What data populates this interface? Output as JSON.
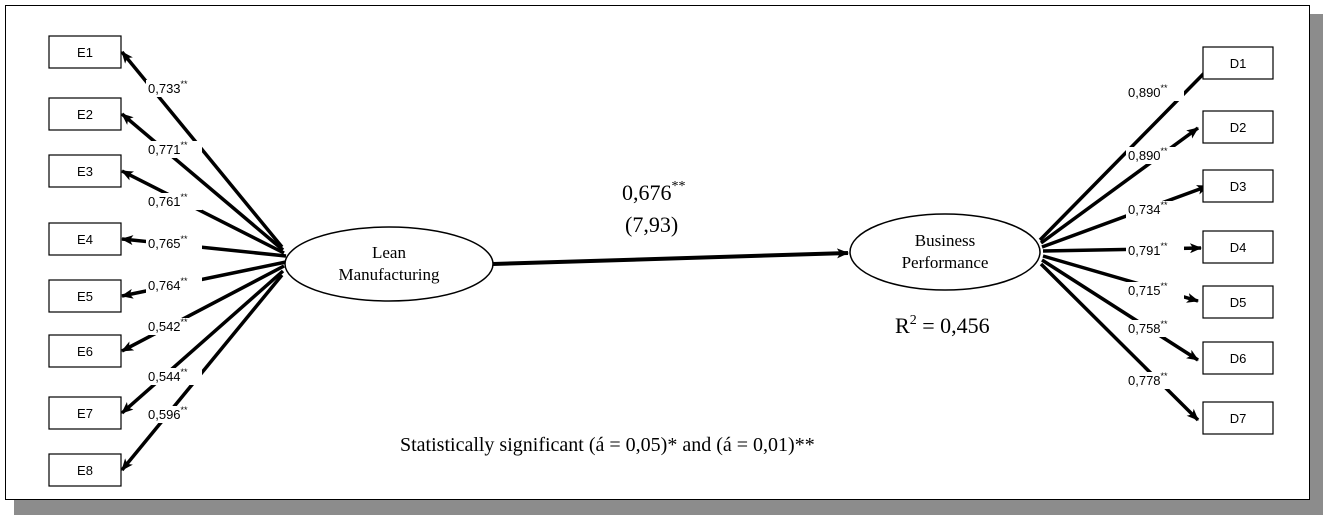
{
  "constructs": {
    "lean": {
      "line1": "Lean",
      "line2": "Manufacturing"
    },
    "business": {
      "line1": "Business",
      "line2": "Performance"
    }
  },
  "path": {
    "coefficient": "0,676",
    "significance": "**",
    "t_value": "(7,93)"
  },
  "r_squared": {
    "prefix": "R",
    "superscript": "2",
    "value": " = 0,456"
  },
  "note": "Statistically significant (á = 0,05)* and (á = 0,01)**",
  "left_indicators": [
    {
      "label": "E1",
      "loading": "0,733",
      "sig": "**"
    },
    {
      "label": "E2",
      "loading": "0,771",
      "sig": "**"
    },
    {
      "label": "E3",
      "loading": "0,761",
      "sig": "**"
    },
    {
      "label": "E4",
      "loading": "0,765",
      "sig": "**"
    },
    {
      "label": "E5",
      "loading": "0,764",
      "sig": "**"
    },
    {
      "label": "E6",
      "loading": "0,542",
      "sig": "**"
    },
    {
      "label": "E7",
      "loading": "0,544",
      "sig": "**"
    },
    {
      "label": "E8",
      "loading": "0,596",
      "sig": "**"
    }
  ],
  "right_indicators": [
    {
      "label": "D1",
      "loading": "0,890",
      "sig": "**"
    },
    {
      "label": "D2",
      "loading": "0,890",
      "sig": "**"
    },
    {
      "label": "D3",
      "loading": "0,734",
      "sig": "**"
    },
    {
      "label": "D4",
      "loading": "0,791",
      "sig": "**"
    },
    {
      "label": "D5",
      "loading": "0,715",
      "sig": "**"
    },
    {
      "label": "D6",
      "loading": "0,758",
      "sig": "**"
    },
    {
      "label": "D7",
      "loading": "0,778",
      "sig": "**"
    }
  ]
}
